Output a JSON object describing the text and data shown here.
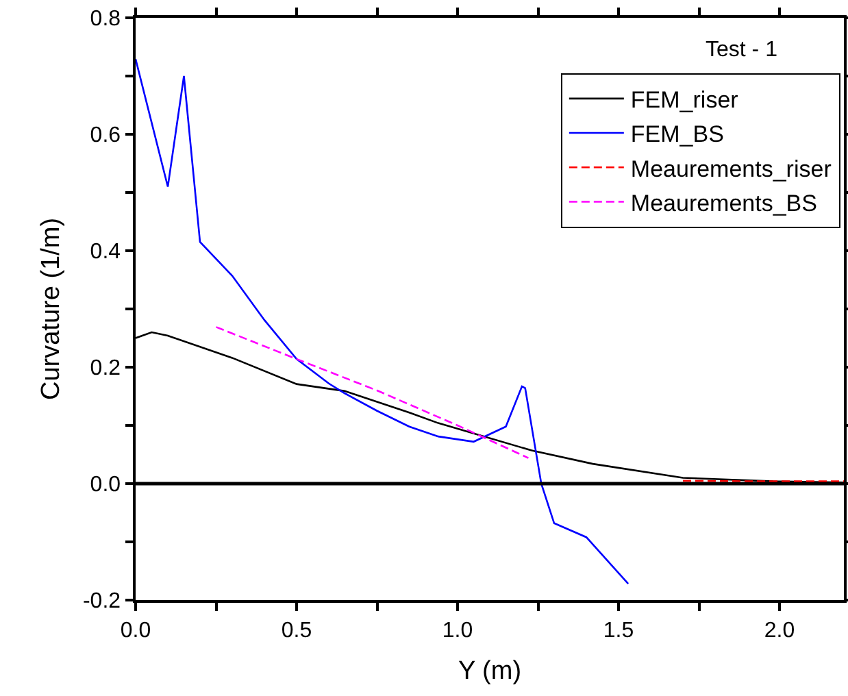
{
  "chart_data": {
    "type": "line",
    "xlabel": "Y (m)",
    "ylabel": "Curvature (1/m)",
    "annotations": [
      "Test - 1"
    ],
    "xlim": [
      0,
      2.2
    ],
    "ylim": [
      -0.2,
      0.8
    ],
    "xticks": [
      {
        "value": 0,
        "label": "0.0"
      },
      {
        "value": 0.25,
        "label": null
      },
      {
        "value": 0.5,
        "label": "0.5"
      },
      {
        "value": 0.75,
        "label": null
      },
      {
        "value": 1,
        "label": "1.0"
      },
      {
        "value": 1.25,
        "label": null
      },
      {
        "value": 1.5,
        "label": "1.5"
      },
      {
        "value": 1.75,
        "label": null
      },
      {
        "value": 2,
        "label": "2.0"
      }
    ],
    "yticks": [
      {
        "value": -0.2,
        "label": "-0.2"
      },
      {
        "value": -0.1,
        "label": null
      },
      {
        "value": 0,
        "label": "0.0"
      },
      {
        "value": 0.1,
        "label": null
      },
      {
        "value": 0.2,
        "label": "0.2"
      },
      {
        "value": 0.3,
        "label": null
      },
      {
        "value": 0.4,
        "label": "0.4"
      },
      {
        "value": 0.5,
        "label": null
      },
      {
        "value": 0.6,
        "label": "0.6"
      },
      {
        "value": 0.7,
        "label": null
      },
      {
        "value": 0.8,
        "label": "0.8"
      }
    ],
    "grid": false,
    "legend": "top right",
    "marker": "none",
    "ref_lines": [
      {
        "axis": "y",
        "value": 0,
        "color": "#000000",
        "line_style": "solid"
      }
    ],
    "series": [
      {
        "name": "FEM_riser",
        "color": "#000000",
        "line_style": "solid",
        "x": [
          0,
          0.05,
          0.1,
          0.3,
          0.5,
          0.65,
          0.85,
          0.94,
          1.23,
          1.42,
          1.7,
          1.98,
          2.2
        ],
        "values": [
          0.25,
          0.26,
          0.254,
          0.216,
          0.171,
          0.159,
          0.122,
          0.104,
          0.057,
          0.034,
          0.01,
          0.004,
          0.002
        ]
      },
      {
        "name": "FEM_BS",
        "color": "#0000ff",
        "line_style": "solid",
        "x": [
          0,
          0.1,
          0.15,
          0.2,
          0.3,
          0.4,
          0.5,
          0.6,
          0.65,
          0.75,
          0.85,
          0.94,
          1.05,
          1.15,
          1.2,
          1.21,
          1.26,
          1.3,
          1.4,
          1.53
        ],
        "values": [
          0.729,
          0.51,
          0.7,
          0.415,
          0.357,
          0.281,
          0.214,
          0.172,
          0.155,
          0.125,
          0.098,
          0.081,
          0.072,
          0.098,
          0.167,
          0.164,
          0,
          -0.068,
          -0.092,
          -0.172
        ]
      },
      {
        "name": "Meaurements_riser",
        "color": "#ff0000",
        "line_style": "dashed",
        "x": [
          1.7,
          1.9,
          2.2
        ],
        "values": [
          0.005,
          0.004,
          0.004
        ]
      },
      {
        "name": "Meaurements_BS",
        "color": "#ff00ff",
        "line_style": "dashed",
        "x": [
          0.25,
          0.5,
          0.75,
          1,
          1.22
        ],
        "values": [
          0.269,
          0.214,
          0.16,
          0.1,
          0.044
        ]
      }
    ]
  }
}
